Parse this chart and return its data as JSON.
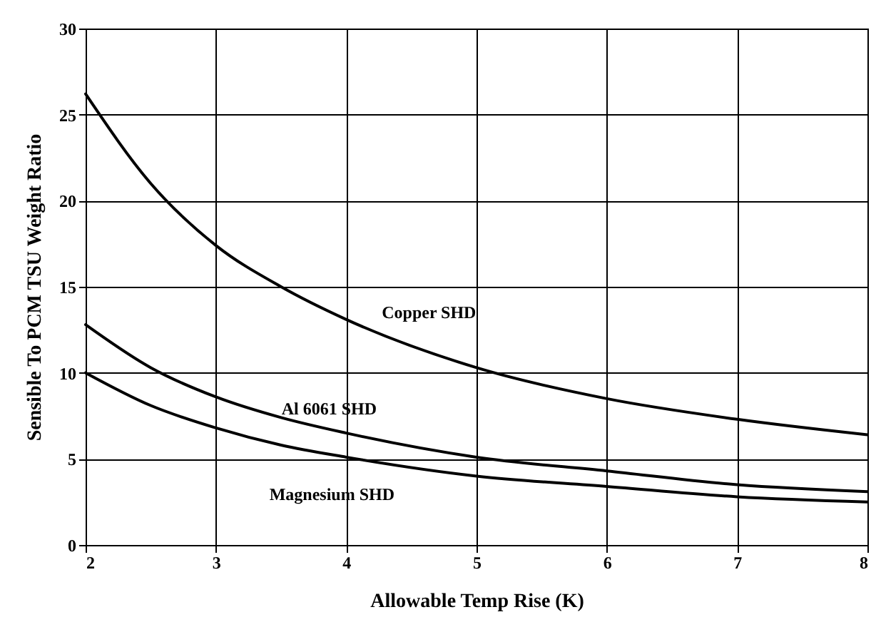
{
  "chart_data": {
    "type": "line",
    "xlabel": "Allowable Temp Rise (K)",
    "ylabel": "Sensible To PCM TSU Weight Ratio",
    "x": [
      2,
      2.5,
      3,
      3.5,
      4,
      5,
      6,
      7,
      8
    ],
    "series": [
      {
        "name": "Copper SHD",
        "color": "#000000",
        "values": [
          26.2,
          21.0,
          17.4,
          15.0,
          13.1,
          10.3,
          8.5,
          7.3,
          6.4
        ]
      },
      {
        "name": "Al 6061 SHD",
        "color": "#000000",
        "values": [
          12.8,
          10.3,
          8.6,
          7.4,
          6.5,
          5.1,
          4.3,
          3.5,
          3.1
        ]
      },
      {
        "name": "Magnesium SHD",
        "color": "#000000",
        "values": [
          10.0,
          8.1,
          6.8,
          5.8,
          5.1,
          4.0,
          3.4,
          2.8,
          2.5
        ]
      }
    ],
    "xlim": [
      2,
      8
    ],
    "xticks": [
      2,
      3,
      4,
      5,
      6,
      7,
      8
    ],
    "ylim": [
      0,
      30
    ],
    "yticks": [
      0,
      5,
      10,
      15,
      20,
      25,
      30
    ],
    "grid": true,
    "marker": "none",
    "line_style": "solid",
    "legend": false
  }
}
